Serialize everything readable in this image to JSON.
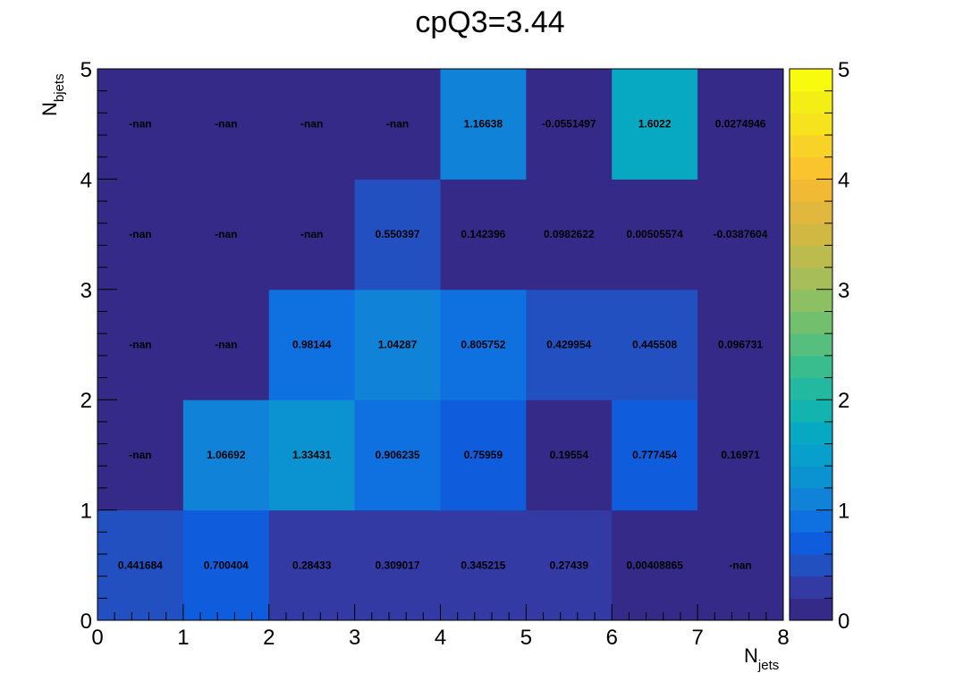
{
  "chart_data": {
    "type": "heatmap",
    "title": "cpQ3=3.44",
    "xlabel": {
      "main": "N",
      "sub": "jets"
    },
    "ylabel": {
      "main": "N",
      "sub": "bjets"
    },
    "xlim": [
      0,
      8
    ],
    "ylim": [
      0,
      5
    ],
    "zlim": [
      0,
      5
    ],
    "x_ticks": [
      "0",
      "1",
      "2",
      "3",
      "4",
      "5",
      "6",
      "7",
      "8"
    ],
    "y_ticks": [
      "0",
      "1",
      "2",
      "3",
      "4",
      "5"
    ],
    "z_ticks": [
      "0",
      "1",
      "2",
      "3",
      "4",
      "5"
    ],
    "x_bins": [
      0,
      1,
      2,
      3,
      4,
      5,
      6,
      7
    ],
    "y_bins": [
      0,
      1,
      2,
      3,
      4
    ],
    "values": [
      [
        0.441684,
        0.700404,
        0.28433,
        0.309017,
        0.345215,
        0.27439,
        0.00408865,
        null
      ],
      [
        null,
        1.06692,
        1.33431,
        0.906235,
        0.75959,
        0.19554,
        0.777454,
        0.16971
      ],
      [
        null,
        null,
        0.98144,
        1.04287,
        0.805752,
        0.429954,
        0.445508,
        0.096731
      ],
      [
        null,
        null,
        null,
        0.550397,
        0.142396,
        0.0982622,
        0.00505574,
        -0.0387604
      ],
      [
        null,
        null,
        null,
        null,
        1.16638,
        -0.0551497,
        1.6022,
        0.0274946
      ]
    ],
    "labels": [
      [
        "0.441684",
        "0.700404",
        "0.28433",
        "0.309017",
        "0.345215",
        "0.27439",
        "0.00408865",
        "-nan"
      ],
      [
        "-nan",
        "1.06692",
        "1.33431",
        "0.906235",
        "0.75959",
        "0.19554",
        "0.777454",
        "0.16971"
      ],
      [
        "-nan",
        "-nan",
        "0.98144",
        "1.04287",
        "0.805752",
        "0.429954",
        "0.445508",
        "0.096731"
      ],
      [
        "-nan",
        "-nan",
        "-nan",
        "0.550397",
        "0.142396",
        "0.0982622",
        "0.00505574",
        "-0.0387604"
      ],
      [
        "-nan",
        "-nan",
        "-nan",
        "-nan",
        "1.16638",
        "-0.0551497",
        "1.6022",
        "0.0274946"
      ]
    ],
    "palette": [
      "#352a87",
      "#343aa3",
      "#2350c0",
      "#0f5cdd",
      "#0f70e0",
      "#1082d8",
      "#0b92d0",
      "#089fcc",
      "#07a9c2",
      "#13b4b0",
      "#22b9a0",
      "#39bd8f",
      "#56bf7e",
      "#72c06e",
      "#8dbf63",
      "#a6bd58",
      "#bcbb4e",
      "#d0b843",
      "#e1b83d",
      "#f0ba35",
      "#f9c42e",
      "#f9d227",
      "#f6e21d",
      "#f4ee16",
      "#f9fb0e"
    ]
  }
}
